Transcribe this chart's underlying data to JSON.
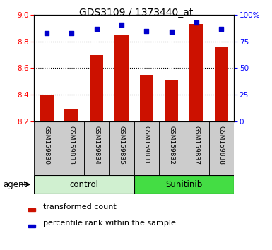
{
  "title": "GDS3109 / 1373440_at",
  "samples": [
    "GSM159830",
    "GSM159833",
    "GSM159834",
    "GSM159835",
    "GSM159831",
    "GSM159832",
    "GSM159837",
    "GSM159838"
  ],
  "bar_values": [
    8.4,
    8.29,
    8.7,
    8.85,
    8.55,
    8.51,
    8.93,
    8.76
  ],
  "percentile_values": [
    83,
    83,
    87,
    91,
    85,
    84,
    93,
    87
  ],
  "bar_bottom": 8.2,
  "ylim_left": [
    8.2,
    9.0
  ],
  "ylim_right": [
    0,
    100
  ],
  "yticks_left": [
    8.2,
    8.4,
    8.6,
    8.8,
    9.0
  ],
  "yticks_right": [
    0,
    25,
    50,
    75,
    100
  ],
  "ytick_labels_right": [
    "0",
    "25",
    "50",
    "75",
    "100%"
  ],
  "grid_yticks": [
    8.4,
    8.6,
    8.8
  ],
  "groups": [
    {
      "label": "control",
      "indices": [
        0,
        1,
        2,
        3
      ],
      "color": "#d0f0d0"
    },
    {
      "label": "Sunitinib",
      "indices": [
        4,
        5,
        6,
        7
      ],
      "color": "#44dd44"
    }
  ],
  "bar_color": "#cc1100",
  "dot_color": "#0000cc",
  "agent_label": "agent",
  "legend_bar_label": "transformed count",
  "legend_dot_label": "percentile rank within the sample",
  "tick_label_area_color": "#cccccc",
  "title_fontsize": 10,
  "tick_fontsize": 7.5,
  "label_fontsize": 8.5,
  "legend_fontsize": 8
}
